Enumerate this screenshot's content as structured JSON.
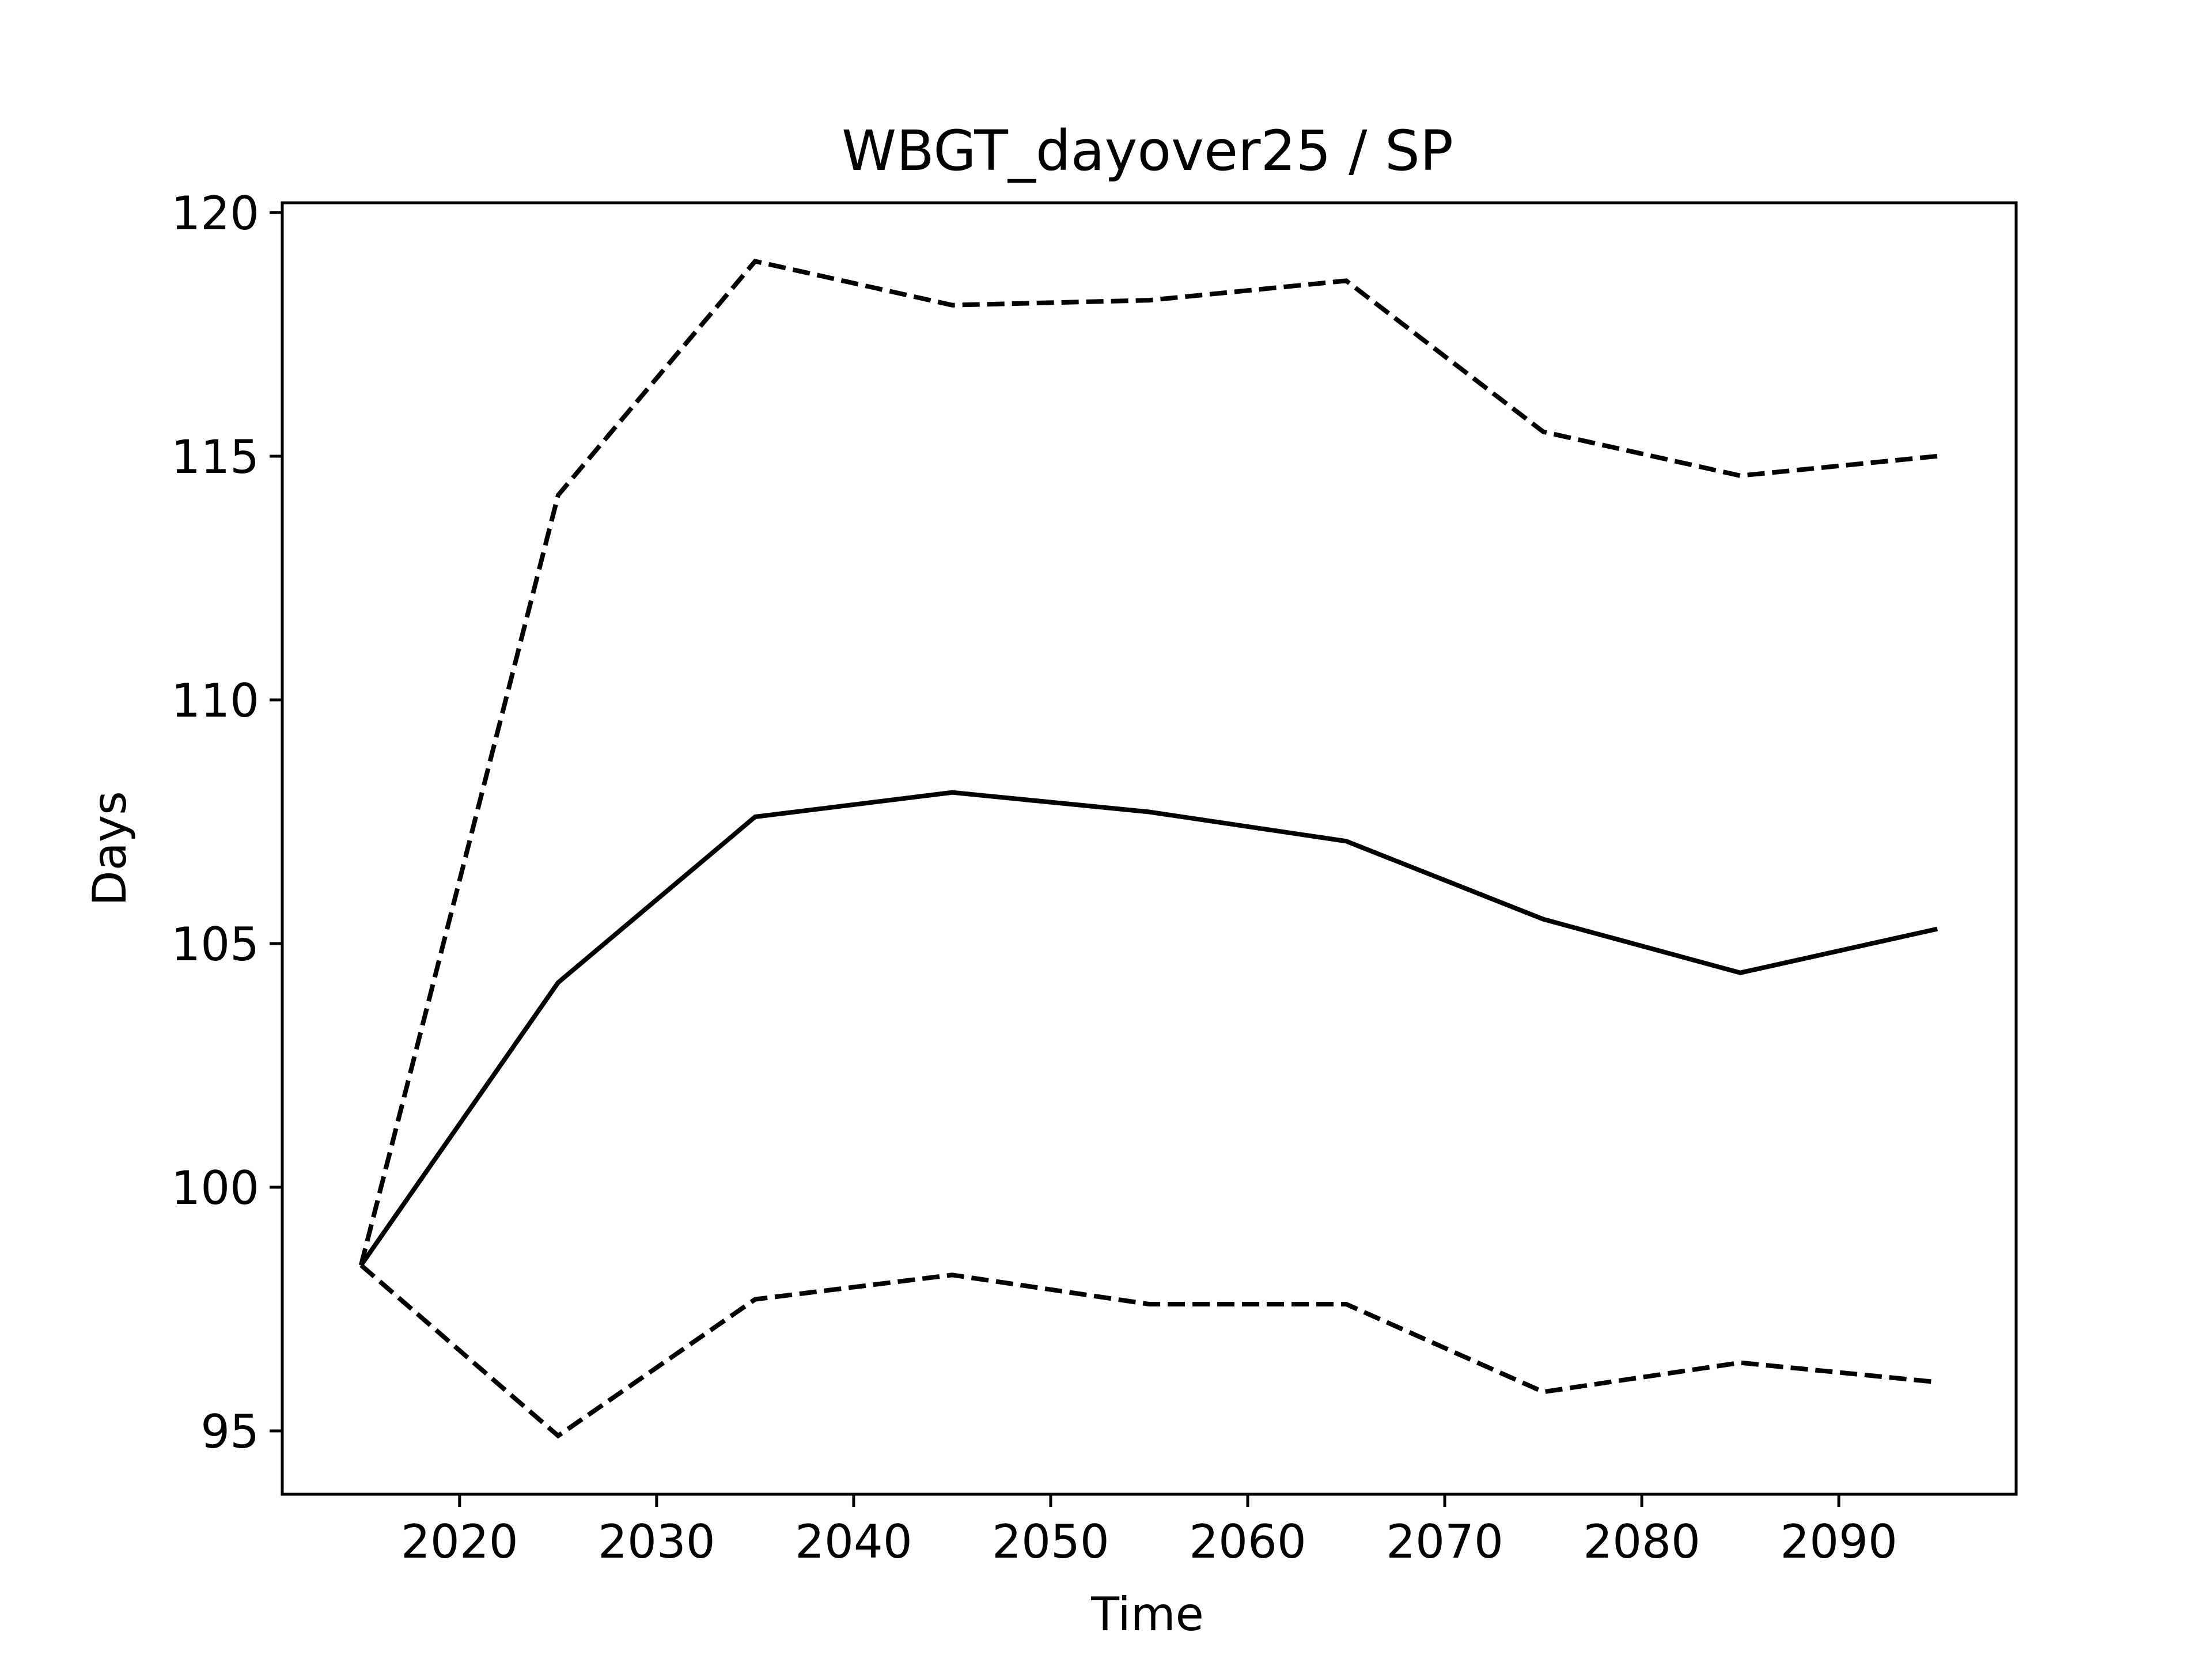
{
  "chart_data": {
    "type": "line",
    "title": "WBGT_dayover25 / SP",
    "xlabel": "Time",
    "ylabel": "Days",
    "x": [
      2015,
      2025,
      2035,
      2045,
      2055,
      2065,
      2075,
      2085,
      2095
    ],
    "xlim": [
      2011,
      2099
    ],
    "ylim": [
      93.7,
      120.2
    ],
    "xticks": [
      2020,
      2030,
      2040,
      2050,
      2060,
      2070,
      2080,
      2090
    ],
    "yticks": [
      95,
      100,
      105,
      110,
      115,
      120
    ],
    "grid": false,
    "legend": "none",
    "series": [
      {
        "style": "dashed",
        "color": "#000000",
        "values": [
          98.4,
          114.2,
          119.0,
          118.1,
          118.2,
          118.6,
          115.5,
          114.6,
          115.0
        ]
      },
      {
        "style": "solid",
        "color": "#000000",
        "values": [
          98.4,
          104.2,
          107.6,
          108.1,
          107.7,
          107.1,
          105.5,
          104.4,
          105.3
        ]
      },
      {
        "style": "dashed",
        "color": "#000000",
        "values": [
          98.4,
          94.9,
          97.7,
          98.2,
          97.6,
          97.6,
          95.8,
          96.4,
          96.0
        ]
      }
    ]
  }
}
